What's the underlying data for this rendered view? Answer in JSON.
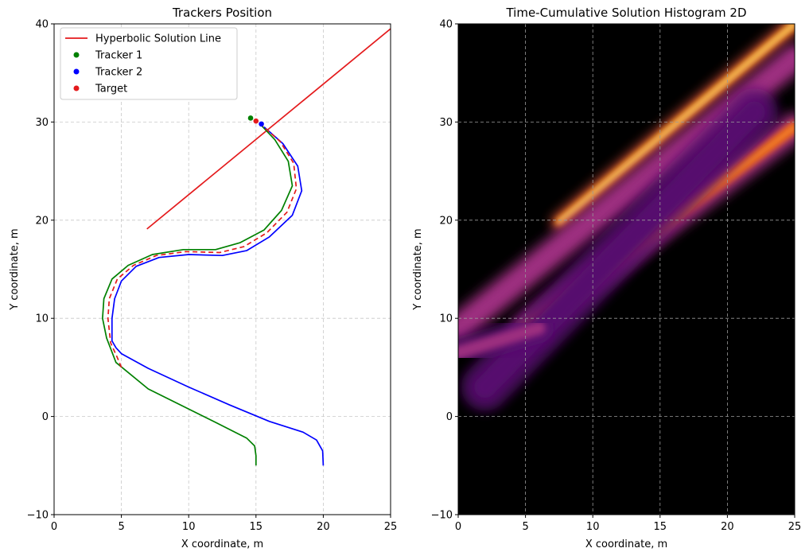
{
  "chart_data": [
    {
      "type": "line",
      "title": "Trackers Position",
      "xlabel": "X coordinate, m",
      "ylabel": "Y coordinate, m",
      "xlim": [
        0,
        25
      ],
      "ylim": [
        -10,
        40
      ],
      "xticks": [
        "0",
        "5",
        "10",
        "15",
        "20",
        "25"
      ],
      "yticks": [
        "−10",
        "0",
        "10",
        "20",
        "30",
        "40"
      ],
      "grid": true,
      "legend_position": "top-left",
      "series": [
        {
          "name": "Hyperbolic Solution Line",
          "color": "#e41a1c",
          "style": "solid",
          "points": [
            [
              6.9,
              19.1
            ],
            [
              25.0,
              39.5
            ]
          ]
        },
        {
          "name": "Tracker 1",
          "color": "#008000",
          "style": "solid",
          "points": [
            [
              15.0,
              -5.0
            ],
            [
              15.0,
              -4.0
            ],
            [
              14.9,
              -3.0
            ],
            [
              14.3,
              -2.2
            ],
            [
              12.0,
              -0.6
            ],
            [
              9.5,
              1.1
            ],
            [
              7.0,
              2.8
            ],
            [
              4.6,
              5.5
            ],
            [
              3.9,
              8.0
            ],
            [
              3.6,
              10.0
            ],
            [
              3.7,
              12.0
            ],
            [
              4.3,
              14.0
            ],
            [
              5.5,
              15.4
            ],
            [
              7.3,
              16.5
            ],
            [
              9.6,
              17.0
            ],
            [
              12.0,
              17.0
            ],
            [
              13.8,
              17.7
            ],
            [
              15.6,
              19.0
            ],
            [
              16.9,
              21.0
            ],
            [
              17.7,
              23.5
            ],
            [
              17.4,
              26.0
            ],
            [
              16.4,
              28.2
            ],
            [
              15.3,
              29.8
            ]
          ]
        },
        {
          "name": "Tracker 2",
          "color": "#0000ff",
          "style": "solid",
          "points": [
            [
              20.0,
              -5.0
            ],
            [
              19.95,
              -3.5
            ],
            [
              19.5,
              -2.4
            ],
            [
              18.5,
              -1.6
            ],
            [
              16.0,
              -0.5
            ],
            [
              13.0,
              1.2
            ],
            [
              10.0,
              3.0
            ],
            [
              7.0,
              4.9
            ],
            [
              5.0,
              6.4
            ],
            [
              4.6,
              7.0
            ],
            [
              4.3,
              7.7
            ],
            [
              4.3,
              10.0
            ],
            [
              4.5,
              12.0
            ],
            [
              5.0,
              13.8
            ],
            [
              6.1,
              15.3
            ],
            [
              7.8,
              16.2
            ],
            [
              10.0,
              16.5
            ],
            [
              12.5,
              16.4
            ],
            [
              14.3,
              16.9
            ],
            [
              16.0,
              18.3
            ],
            [
              17.7,
              20.5
            ],
            [
              18.4,
              23.0
            ],
            [
              18.1,
              25.5
            ],
            [
              17.0,
              27.8
            ],
            [
              15.6,
              29.5
            ]
          ]
        },
        {
          "name": "",
          "color": "#e41a1c",
          "style": "dashed",
          "points": [
            [
              5.0,
              5.0
            ],
            [
              4.7,
              6.0
            ],
            [
              4.2,
              7.5
            ],
            [
              4.0,
              10.0
            ],
            [
              4.1,
              12.0
            ],
            [
              4.7,
              14.0
            ],
            [
              5.9,
              15.4
            ],
            [
              7.6,
              16.4
            ],
            [
              9.8,
              16.8
            ],
            [
              12.3,
              16.7
            ],
            [
              14.1,
              17.3
            ],
            [
              15.8,
              18.7
            ],
            [
              17.3,
              20.8
            ],
            [
              18.0,
              23.2
            ],
            [
              17.8,
              25.8
            ],
            [
              16.8,
              28.0
            ],
            [
              15.5,
              29.6
            ]
          ]
        }
      ],
      "markers": [
        {
          "name": "Tracker 1",
          "color": "#008000",
          "x": 14.6,
          "y": 30.4
        },
        {
          "name": "Tracker 2",
          "color": "#0000ff",
          "x": 15.4,
          "y": 29.8
        },
        {
          "name": "Target",
          "color": "#e41a1c",
          "x": 15.0,
          "y": 30.1
        }
      ],
      "legend": [
        {
          "label": "Hyperbolic Solution Line",
          "kind": "line",
          "color": "#e41a1c"
        },
        {
          "label": "Tracker 1",
          "kind": "dot",
          "color": "#008000"
        },
        {
          "label": "Tracker 2",
          "kind": "dot",
          "color": "#0000ff"
        },
        {
          "label": "Target",
          "kind": "dot",
          "color": "#e41a1c"
        }
      ]
    },
    {
      "type": "heatmap",
      "title": "Time-Cumulative Solution Histogram 2D",
      "xlabel": "X coordinate, m",
      "ylabel": "Y coordinate, m",
      "xlim": [
        0,
        25
      ],
      "ylim": [
        -10,
        40
      ],
      "xticks": [
        "0",
        "5",
        "10",
        "15",
        "20",
        "25"
      ],
      "yticks": [
        "−10",
        "0",
        "10",
        "20",
        "30",
        "40"
      ],
      "grid": true,
      "colormap": "inferno",
      "background": "#000000",
      "bands": [
        {
          "from": [
            7.5,
            19.8
          ],
          "to": [
            25.0,
            40.0
          ],
          "width": 0.55,
          "intensity": 1.0
        },
        {
          "from": [
            0.0,
            9.0
          ],
          "to": [
            25.0,
            36.5
          ],
          "width": 1.0,
          "intensity": 0.55
        },
        {
          "from": [
            5.0,
            9.0
          ],
          "to": [
            25.0,
            29.5
          ],
          "width": 1.0,
          "intensity": 0.7
        },
        {
          "from": [
            2.0,
            3.0
          ],
          "to": [
            22.0,
            31.0
          ],
          "width": 1.6,
          "intensity": 0.25
        },
        {
          "from": [
            0.0,
            6.5
          ],
          "to": [
            6.0,
            9.0
          ],
          "width": 1.0,
          "intensity": 0.4
        }
      ]
    }
  ]
}
